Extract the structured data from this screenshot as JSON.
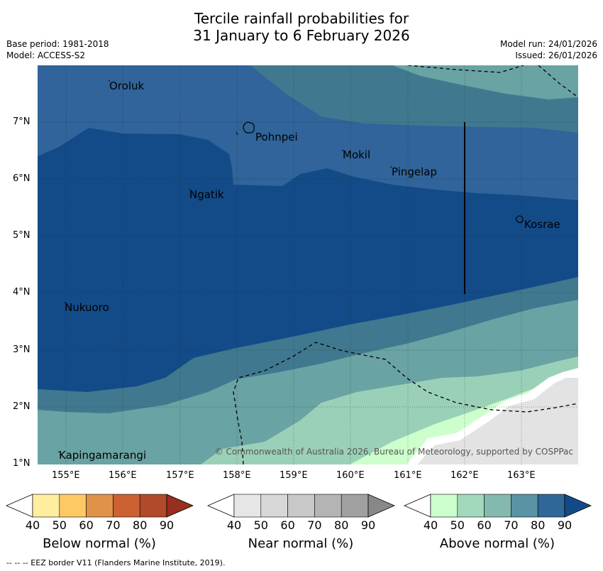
{
  "title_line1": "Tercile rainfall probabilities for",
  "title_line2": "31 January to 6 February 2026",
  "meta": {
    "base_period": "Base period: 1981-2018",
    "model": "Model: ACCESS-S2",
    "model_run": "Model run: 24/01/2026",
    "issued": "Issued: 26/01/2026"
  },
  "places": [
    "Oroluk",
    "Pohnpei",
    "Mokil",
    "Pingelap",
    "Ngatik",
    "Kosrae",
    "Nukuoro",
    "Kapingamarangi"
  ],
  "lat_ticks": [
    "1°N",
    "2°N",
    "3°N",
    "4°N",
    "5°N",
    "6°N",
    "7°N"
  ],
  "lon_ticks": [
    "155°E",
    "156°E",
    "157°E",
    "158°E",
    "159°E",
    "160°E",
    "161°E",
    "162°E",
    "163°E"
  ],
  "copyright": "© Commonwealth of Australia 2026, Bureau of Meteorology, supported by COSPPac",
  "colorbars": [
    {
      "title": "Below normal (%)",
      "labels": [
        "40",
        "50",
        "60",
        "70",
        "80",
        "90"
      ],
      "colors": [
        "#ffffff",
        "#ffeda0",
        "#fec965",
        "#e0924b",
        "#cc6232",
        "#b14a2a",
        "#982e1e"
      ]
    },
    {
      "title": "Near normal (%)",
      "labels": [
        "40",
        "50",
        "60",
        "70",
        "80",
        "90"
      ],
      "colors": [
        "#ffffff",
        "#e6e6e6",
        "#d7d7d7",
        "#c8c8c8",
        "#b4b4b4",
        "#a0a0a0",
        "#888888"
      ]
    },
    {
      "title": "Above normal (%)",
      "labels": [
        "40",
        "50",
        "60",
        "70",
        "80",
        "90"
      ],
      "colors": [
        "#ffffff",
        "#ccffcc",
        "#a2d9bc",
        "#84b9b0",
        "#5a93a3",
        "#316698",
        "#134b88"
      ]
    }
  ],
  "footer": "--  --  -- EEZ border V11 (Flanders Marine Institute, 2019)."
}
